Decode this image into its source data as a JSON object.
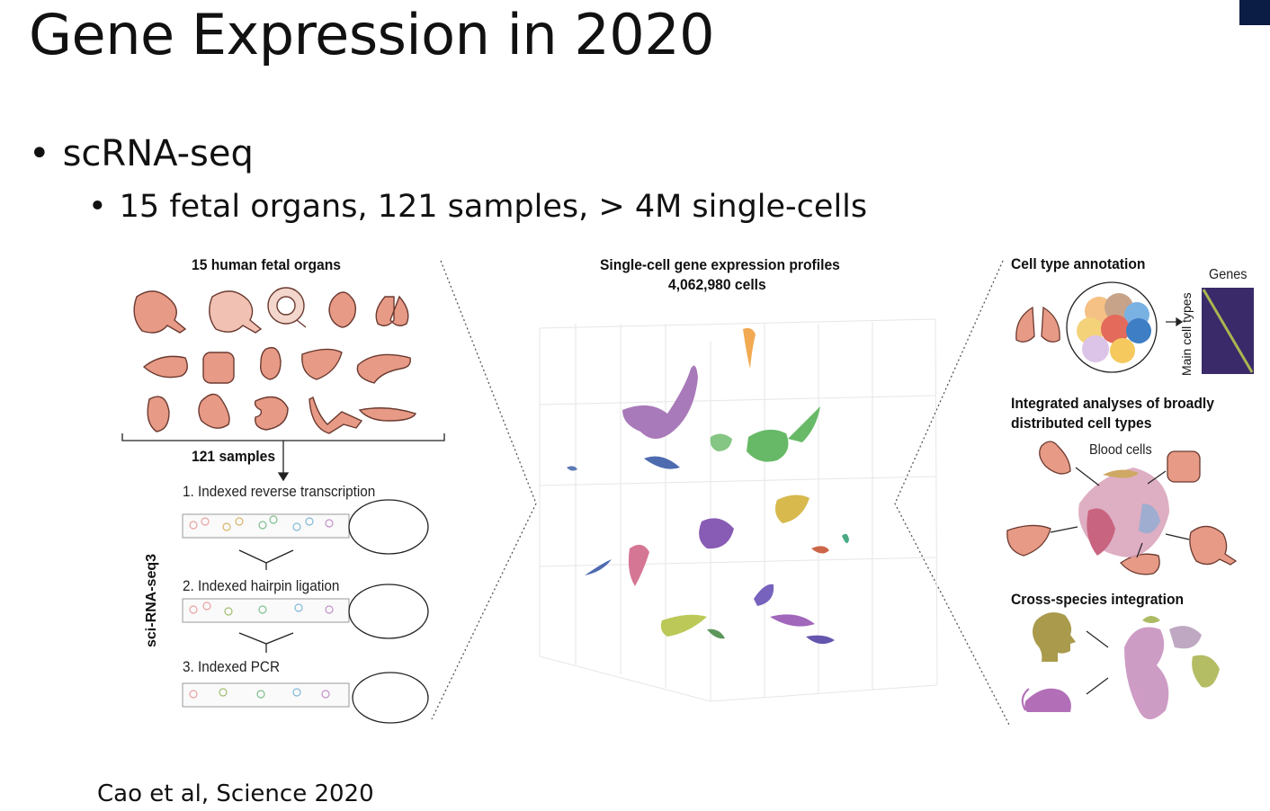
{
  "slide": {
    "title": "Gene Expression in 2020",
    "bullets": [
      {
        "text": "scRNA-seq",
        "level": 1
      },
      {
        "text": "15 fetal organs, 121 samples, > 4M single-cells",
        "level": 2
      }
    ],
    "citation": "Cao et al, Science 2020"
  },
  "figure": {
    "left": {
      "heading": "15 human fetal organs",
      "samples_label": "121 samples",
      "method_label": "sci-RNA-seq3",
      "steps": [
        "1. Indexed reverse transcription",
        "2. Indexed hairpin ligation",
        "3. Indexed PCR"
      ]
    },
    "middle": {
      "heading_line1": "Single-cell gene expression profiles",
      "heading_line2": "4,062,980 cells"
    },
    "right": {
      "panel1_title": "Cell type annotation",
      "genes_label": "Genes",
      "celltypes_label": "Main cell types",
      "panel2_title_line1": "Integrated analyses of broadly",
      "panel2_title_line2": "distributed cell types",
      "blood_label": "Blood cells",
      "panel3_title": "Cross-species integration"
    }
  },
  "colors": {
    "organ": "#e79a86",
    "organ_stroke": "#6b3a30",
    "heatmap": "#3a2a6a"
  }
}
